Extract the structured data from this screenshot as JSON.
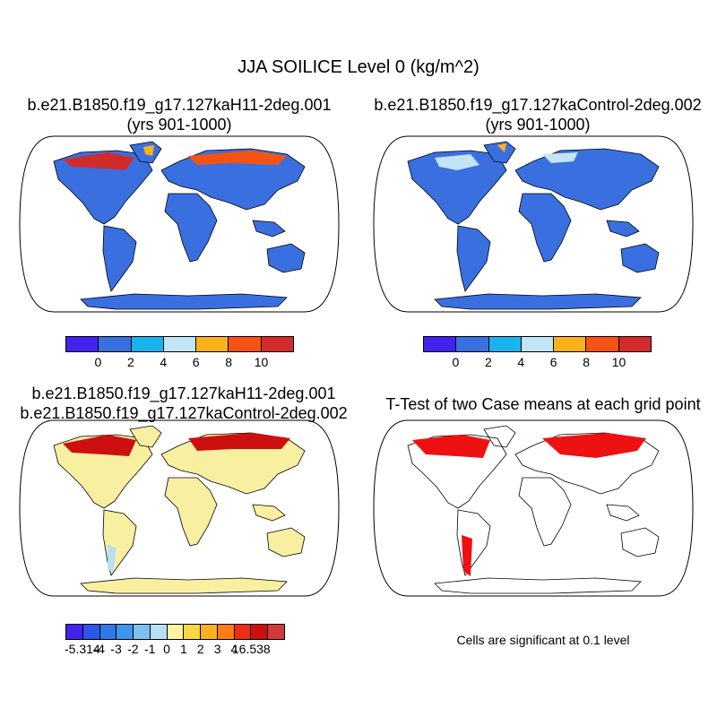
{
  "title": "JJA SOILICE Level 0 (kg/m^2)",
  "panels": {
    "top_left": {
      "title1": "b.e21.B1850.f19_g17.127kaH11-2deg.001",
      "title2": "(yrs 901-1000)"
    },
    "top_right": {
      "title1": "b.e21.B1850.f19_g17.127kaControl-2deg.002",
      "title2": "(yrs 901-1000)"
    },
    "bottom_left": {
      "title1": "b.e21.B1850.f19_g17.127kaH11-2deg.001",
      "title2": "b.e21.B1850.f19_g17.127kaControl-2deg.002"
    },
    "bottom_right": {
      "title1": "T-Test of two Case means at each grid point",
      "note": "Cells are significant at 0.1 level"
    }
  },
  "legend_abs": {
    "colors": [
      "#4422ee",
      "#3a6fe0",
      "#18b4f0",
      "#c3e4f4",
      "#fbb21a",
      "#f55314",
      "#d22b2b"
    ],
    "tick_labels": [
      "0",
      "2",
      "4",
      "6",
      "8",
      "10"
    ]
  },
  "legend_diff": {
    "colors": [
      "#4422ee",
      "#2d55e6",
      "#2e78e8",
      "#3c96ee",
      "#7cc0f0",
      "#b6e0f4",
      "#fbf4a0",
      "#fbd640",
      "#fbb020",
      "#fa7c14",
      "#ee2c14",
      "#cc1010",
      "#d23a3a"
    ],
    "tick_labels": [
      "-5.314",
      "-4",
      "-3",
      "-2",
      "-1",
      "0",
      "1",
      "2",
      "3",
      "4",
      "16.538"
    ]
  },
  "colors": {
    "land_abs": "#3a6fe0",
    "land_diff": "#f8f0a0",
    "signif": "#ee1111"
  }
}
